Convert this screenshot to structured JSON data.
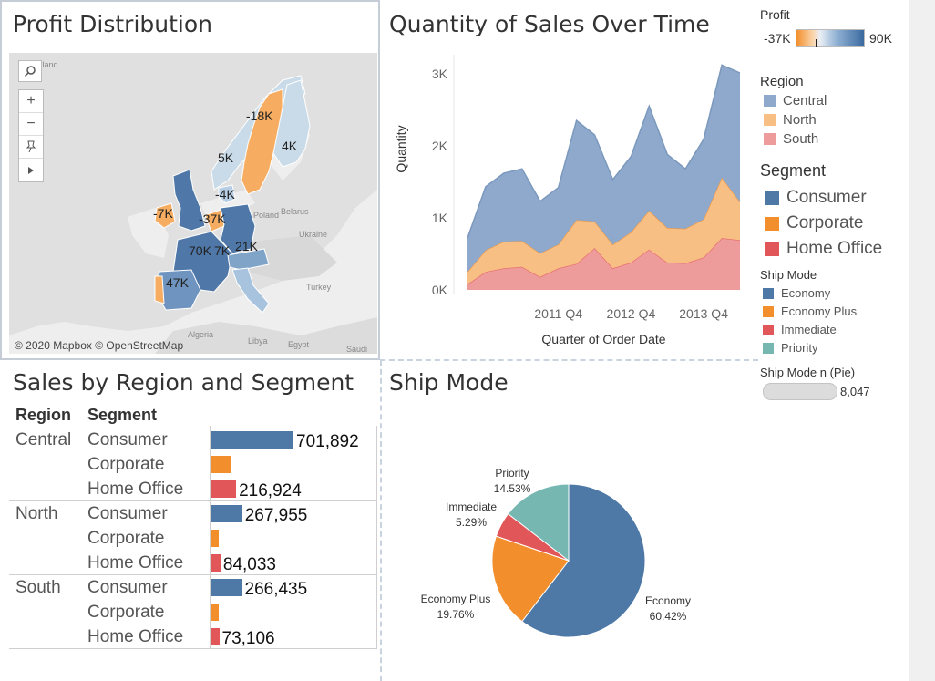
{
  "profit_map": {
    "title": "Profit Distribution",
    "credit": "© 2020 Mapbox © OpenStreetMap",
    "region_labels": [
      "-18K",
      "4K",
      "5K",
      "-4K",
      "-7K",
      "-37K",
      "70K",
      "7K",
      "21K",
      "47K"
    ],
    "geo_labels": [
      "Finland",
      "Poland",
      "Belarus",
      "Ukraine",
      "Turkey",
      "Algeria",
      "Libya",
      "Egypt",
      "Saudi"
    ],
    "tools": [
      "search-icon",
      "zoom-in-icon",
      "zoom-out-icon",
      "pin-icon",
      "play-icon"
    ]
  },
  "profit_legend": {
    "title": "Profit",
    "min_label": "-37K",
    "max_label": "90K",
    "min_color": "#f28e2b",
    "max_color": "#4e79a7"
  },
  "area_chart": {
    "title": "Quantity of Sales Over Time"
  },
  "region_legend": {
    "title": "Region",
    "items": [
      {
        "label": "Central",
        "color": "#8ea9cb"
      },
      {
        "label": "North",
        "color": "#f8bf84"
      },
      {
        "label": "South",
        "color": "#ee9b9b"
      }
    ]
  },
  "segment_legend": {
    "title": "Segment",
    "items": [
      {
        "label": "Consumer",
        "color": "#4e79a7"
      },
      {
        "label": "Corporate",
        "color": "#f28e2b"
      },
      {
        "label": "Home Office",
        "color": "#e15759"
      }
    ]
  },
  "shipmode_legend": {
    "title": "Ship Mode",
    "items": [
      {
        "label": "Economy",
        "color": "#4e79a7"
      },
      {
        "label": "Economy Plus",
        "color": "#f28e2b"
      },
      {
        "label": "Immediate",
        "color": "#e15759"
      },
      {
        "label": "Priority",
        "color": "#76b7b2"
      }
    ]
  },
  "pie_size_legend": {
    "title": "Ship Mode n (Pie)",
    "value": "8,047"
  },
  "sales_table": {
    "title": "Sales by Region and Segment",
    "col_region": "Region",
    "col_segment": "Segment",
    "max_value": 701892,
    "groups": [
      {
        "region": "Central",
        "rows": [
          {
            "segment": "Consumer",
            "value": 701892,
            "label": "701,892"
          },
          {
            "segment": "Corporate",
            "value": 172000,
            "label": ""
          },
          {
            "segment": "Home Office",
            "value": 216924,
            "label": "216,924"
          }
        ]
      },
      {
        "region": "North",
        "rows": [
          {
            "segment": "Consumer",
            "value": 267955,
            "label": "267,955"
          },
          {
            "segment": "Corporate",
            "value": 68000,
            "label": ""
          },
          {
            "segment": "Home Office",
            "value": 84033,
            "label": "84,033"
          }
        ]
      },
      {
        "region": "South",
        "rows": [
          {
            "segment": "Consumer",
            "value": 266435,
            "label": "266,435"
          },
          {
            "segment": "Corporate",
            "value": 72000,
            "label": ""
          },
          {
            "segment": "Home Office",
            "value": 73106,
            "label": "73,106"
          }
        ]
      }
    ]
  },
  "ship_mode": {
    "title": "Ship Mode"
  },
  "chart_data": [
    {
      "type": "area",
      "stacked": true,
      "xlabel": "Quarter of Order Date",
      "ylabel": "Quantity",
      "ylim": [
        0,
        3200
      ],
      "y_ticks": [
        0,
        1000,
        2000,
        3000
      ],
      "y_tick_labels": [
        "0K",
        "1K",
        "2K",
        "3K"
      ],
      "x_tick_labels": [
        "2011 Q4",
        "2012 Q4",
        "2013 Q4"
      ],
      "x_tick_positions": [
        5,
        9,
        13
      ],
      "x": [
        "2010 Q4",
        "2011 Q1",
        "2011 Q2",
        "2011 Q3",
        "2011 Q4",
        "2012 Q1",
        "2012 Q2",
        "2012 Q3",
        "2012 Q4",
        "2013 Q1",
        "2013 Q2",
        "2013 Q3",
        "2013 Q4",
        "2014 Q1",
        "2014 Q2",
        "2014 Q3"
      ],
      "series": [
        {
          "name": "South",
          "color": "#ee9b9b",
          "values": [
            80,
            250,
            300,
            320,
            180,
            300,
            360,
            580,
            300,
            380,
            560,
            380,
            370,
            450,
            720,
            690
          ]
        },
        {
          "name": "North",
          "color": "#f8bf84",
          "values": [
            170,
            300,
            370,
            360,
            330,
            330,
            610,
            370,
            330,
            420,
            540,
            480,
            480,
            530,
            840,
            530
          ]
        },
        {
          "name": "Central",
          "color": "#8ea9cb",
          "values": [
            470,
            880,
            950,
            1000,
            720,
            790,
            1380,
            1200,
            900,
            1050,
            1450,
            1020,
            830,
            1110,
            1560,
            1790
          ]
        }
      ]
    },
    {
      "type": "pie",
      "title": "Ship Mode",
      "categories": [
        "Economy",
        "Economy Plus",
        "Immediate",
        "Priority"
      ],
      "values": [
        60.42,
        19.76,
        5.29,
        14.53
      ],
      "labels": [
        "60.42%",
        "19.76%",
        "5.29%",
        "14.53%"
      ],
      "colors": [
        "#4e79a7",
        "#f28e2b",
        "#e15759",
        "#76b7b2"
      ]
    },
    {
      "type": "bar",
      "title": "Sales by Region and Segment",
      "categories": [
        "Central / Consumer",
        "Central / Corporate",
        "Central / Home Office",
        "North / Consumer",
        "North / Corporate",
        "North / Home Office",
        "South / Consumer",
        "South / Corporate",
        "South / Home Office"
      ],
      "values": [
        701892,
        172000,
        216924,
        267955,
        68000,
        84033,
        266435,
        72000,
        73106
      ]
    }
  ]
}
